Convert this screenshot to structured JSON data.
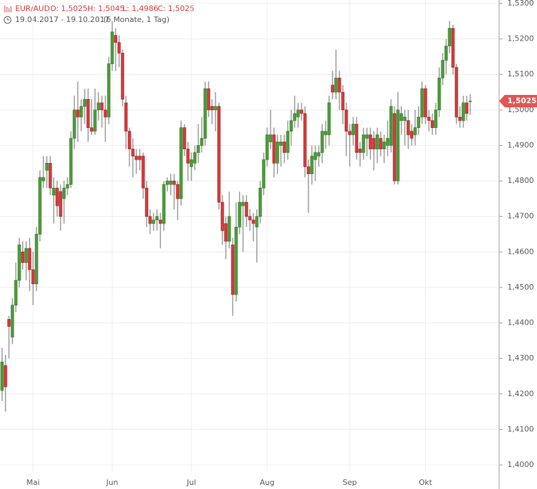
{
  "chart_data": {
    "type": "candlestick",
    "header": {
      "symbol": "EUR/AUD",
      "open": "O: 1,5025",
      "high": "H: 1,5045",
      "low": "L: 1,4986",
      "close": "C: 1,5025",
      "range": "19.04.2017 - 19.10.2017",
      "span": "(6 Monate, 1 Tag)"
    },
    "up_color": "#4d9e3a",
    "down_color": "#d93a3a",
    "grid": true,
    "categories": [
      null,
      null,
      null,
      null,
      null,
      null,
      null,
      null,
      null,
      "Mai",
      null,
      null,
      null,
      null,
      null,
      null,
      null,
      null,
      null,
      null,
      null,
      null,
      null,
      null,
      null,
      null,
      null,
      null,
      null,
      null,
      null,
      null,
      "Jun",
      null,
      null,
      null,
      null,
      null,
      null,
      null,
      null,
      null,
      null,
      null,
      null,
      null,
      null,
      null,
      null,
      null,
      null,
      null,
      null,
      null,
      null,
      "Jul",
      null,
      null,
      null,
      null,
      null,
      null,
      null,
      null,
      null,
      null,
      null,
      null,
      null,
      null,
      null,
      null,
      null,
      null,
      null,
      null,
      null,
      "Aug",
      null,
      null,
      null,
      null,
      null,
      null,
      null,
      null,
      null,
      null,
      null,
      null,
      null,
      null,
      null,
      null,
      null,
      null,
      null,
      null,
      null,
      null,
      null,
      "Sep",
      null,
      null,
      null,
      null,
      null,
      null,
      null,
      null,
      null,
      null,
      null,
      null,
      null,
      null,
      null,
      null,
      null,
      null,
      null,
      null,
      null,
      "Okt",
      null,
      null,
      null,
      null,
      null,
      null,
      null,
      null,
      null,
      null,
      null,
      null,
      null
    ],
    "open": [
      1.421,
      1.428,
      1.441,
      1.436,
      1.445,
      1.452,
      1.46,
      1.457,
      1.461,
      1.455,
      1.451,
      1.465,
      1.48,
      1.483,
      1.485,
      1.476,
      1.478,
      1.477,
      1.475,
      1.478,
      1.479,
      1.492,
      1.5,
      1.498,
      1.501,
      1.503,
      1.495,
      1.494,
      1.5,
      1.502,
      1.5,
      1.498,
      1.513,
      1.521,
      1.519,
      1.516,
      1.502,
      1.494,
      1.489,
      1.487,
      1.487,
      1.487,
      1.478,
      1.47,
      1.468,
      1.469,
      1.469,
      1.468,
      1.479,
      1.479,
      1.48,
      1.479,
      1.475,
      1.495,
      1.489,
      1.484,
      1.485,
      1.488,
      1.49,
      1.492,
      1.506,
      1.501,
      1.5,
      1.501,
      1.474,
      1.468,
      1.463,
      1.462,
      1.448,
      1.467,
      1.473,
      1.474,
      1.47,
      1.469,
      1.467,
      1.47,
      1.478,
      1.486,
      1.491,
      1.493,
      1.485,
      1.49,
      1.491,
      1.488,
      1.494,
      1.497,
      1.498,
      1.5,
      1.499,
      1.484,
      1.482,
      1.486,
      1.487,
      1.488,
      1.493,
      1.493,
      1.507,
      1.505,
      1.509,
      1.505,
      1.5,
      1.494,
      1.493,
      1.496,
      1.489,
      1.488,
      1.492,
      1.493,
      1.492,
      1.489,
      1.492,
      1.489,
      1.49,
      1.49,
      1.499,
      1.48,
      1.497,
      1.497,
      1.497,
      1.494,
      1.493,
      1.495,
      1.498,
      1.506,
      1.498,
      1.497,
      1.495,
      1.5,
      1.509,
      1.514,
      1.518,
      1.523,
      1.512,
      1.498,
      1.497,
      1.502,
      1.5025
    ],
    "high": [
      1.433,
      1.431,
      1.442,
      1.447,
      1.457,
      1.464,
      1.463,
      1.463,
      1.464,
      1.46,
      1.467,
      1.483,
      1.487,
      1.487,
      1.487,
      1.481,
      1.48,
      1.479,
      1.48,
      1.481,
      1.494,
      1.504,
      1.508,
      1.503,
      1.506,
      1.506,
      1.503,
      1.506,
      1.505,
      1.504,
      1.504,
      1.515,
      1.525,
      1.523,
      1.521,
      1.517,
      1.504,
      1.495,
      1.492,
      1.489,
      1.489,
      1.488,
      1.48,
      1.472,
      1.471,
      1.472,
      1.471,
      1.48,
      1.481,
      1.482,
      1.482,
      1.48,
      1.497,
      1.496,
      1.491,
      1.488,
      1.49,
      1.496,
      1.498,
      1.508,
      1.508,
      1.503,
      1.505,
      1.502,
      1.476,
      1.47,
      1.477,
      1.464,
      1.474,
      1.477,
      1.476,
      1.476,
      1.472,
      1.471,
      1.472,
      1.48,
      1.488,
      1.495,
      1.5,
      1.495,
      1.493,
      1.493,
      1.493,
      1.497,
      1.5,
      1.504,
      1.502,
      1.502,
      1.501,
      1.486,
      1.49,
      1.49,
      1.49,
      1.496,
      1.497,
      1.504,
      1.511,
      1.517,
      1.511,
      1.507,
      1.502,
      1.496,
      1.498,
      1.498,
      1.491,
      1.495,
      1.495,
      1.495,
      1.494,
      1.495,
      1.494,
      1.493,
      1.497,
      1.503,
      1.501,
      1.505,
      1.501,
      1.5,
      1.5,
      1.496,
      1.5,
      1.501,
      1.508,
      1.507,
      1.5,
      1.499,
      1.502,
      1.512,
      1.516,
      1.52,
      1.525,
      1.524,
      1.513,
      1.501,
      1.504,
      1.504,
      1.5045
    ],
    "low": [
      1.418,
      1.415,
      1.43,
      1.434,
      1.443,
      1.45,
      1.455,
      1.452,
      1.449,
      1.445,
      1.449,
      1.463,
      1.478,
      1.478,
      1.476,
      1.468,
      1.47,
      1.466,
      1.468,
      1.476,
      1.478,
      1.489,
      1.491,
      1.494,
      1.496,
      1.491,
      1.493,
      1.493,
      1.497,
      1.495,
      1.491,
      1.496,
      1.511,
      1.511,
      1.512,
      1.501,
      1.489,
      1.484,
      1.481,
      1.482,
      1.483,
      1.475,
      1.467,
      1.465,
      1.466,
      1.466,
      1.461,
      1.466,
      1.477,
      1.476,
      1.472,
      1.469,
      1.473,
      1.487,
      1.48,
      1.48,
      1.483,
      1.485,
      1.488,
      1.49,
      1.498,
      1.496,
      1.494,
      1.472,
      1.462,
      1.458,
      1.461,
      1.442,
      1.446,
      1.465,
      1.46,
      1.467,
      1.466,
      1.463,
      1.457,
      1.468,
      1.476,
      1.484,
      1.489,
      1.481,
      1.482,
      1.484,
      1.485,
      1.486,
      1.49,
      1.495,
      1.495,
      1.497,
      1.481,
      1.471,
      1.479,
      1.48,
      1.484,
      1.485,
      1.489,
      1.49,
      1.503,
      1.503,
      1.5,
      1.496,
      1.487,
      1.484,
      1.49,
      1.486,
      1.484,
      1.486,
      1.487,
      1.486,
      1.483,
      1.485,
      1.487,
      1.485,
      1.487,
      1.488,
      1.479,
      1.479,
      1.493,
      1.49,
      1.489,
      1.49,
      1.49,
      1.493,
      1.496,
      1.496,
      1.494,
      1.493,
      1.493,
      1.498,
      1.507,
      1.51,
      1.516,
      1.51,
      1.496,
      1.495,
      1.495,
      1.497,
      1.4986
    ],
    "close": [
      1.429,
      1.422,
      1.439,
      1.445,
      1.452,
      1.462,
      1.457,
      1.461,
      1.455,
      1.451,
      1.465,
      1.481,
      1.481,
      1.485,
      1.478,
      1.478,
      1.473,
      1.47,
      1.478,
      1.479,
      1.492,
      1.5,
      1.498,
      1.501,
      1.503,
      1.495,
      1.494,
      1.5,
      1.502,
      1.5,
      1.498,
      1.513,
      1.522,
      1.519,
      1.516,
      1.503,
      1.494,
      1.489,
      1.487,
      1.486,
      1.486,
      1.478,
      1.47,
      1.468,
      1.469,
      1.47,
      1.468,
      1.479,
      1.48,
      1.48,
      1.479,
      1.475,
      1.495,
      1.489,
      1.485,
      1.486,
      1.488,
      1.49,
      1.492,
      1.506,
      1.5,
      1.5,
      1.501,
      1.474,
      1.466,
      1.463,
      1.47,
      1.448,
      1.467,
      1.474,
      1.474,
      1.47,
      1.469,
      1.468,
      1.47,
      1.478,
      1.486,
      1.493,
      1.493,
      1.485,
      1.491,
      1.491,
      1.488,
      1.494,
      1.497,
      1.499,
      1.5,
      1.499,
      1.484,
      1.482,
      1.487,
      1.488,
      1.488,
      1.494,
      1.494,
      1.502,
      1.505,
      1.509,
      1.505,
      1.5,
      1.494,
      1.493,
      1.496,
      1.488,
      1.488,
      1.493,
      1.493,
      1.489,
      1.489,
      1.493,
      1.489,
      1.491,
      1.492,
      1.501,
      1.48,
      1.5,
      1.499,
      1.498,
      1.493,
      1.492,
      1.495,
      1.498,
      1.506,
      1.498,
      1.497,
      1.495,
      1.5,
      1.509,
      1.514,
      1.518,
      1.523,
      1.512,
      1.498,
      1.497,
      1.502,
      1.499,
      1.5025
    ],
    "last_price": {
      "value": 1.5025,
      "label": "1,5025"
    },
    "ylim": [
      1.4,
      1.53
    ],
    "yticks": [
      {
        "value": 1.4,
        "label": "1,4000"
      },
      {
        "value": 1.41,
        "label": "1,4100"
      },
      {
        "value": 1.42,
        "label": "1,4200"
      },
      {
        "value": 1.43,
        "label": "1,4300"
      },
      {
        "value": 1.44,
        "label": "1,4400"
      },
      {
        "value": 1.45,
        "label": "1,4500"
      },
      {
        "value": 1.46,
        "label": "1,4600"
      },
      {
        "value": 1.47,
        "label": "1,4700"
      },
      {
        "value": 1.48,
        "label": "1,4800"
      },
      {
        "value": 1.49,
        "label": "1,4900"
      },
      {
        "value": 1.5,
        "label": "1,5000"
      },
      {
        "value": 1.51,
        "label": "1,5100"
      },
      {
        "value": 1.52,
        "label": "1,5200"
      },
      {
        "value": 1.53,
        "label": "1,5300"
      }
    ]
  }
}
